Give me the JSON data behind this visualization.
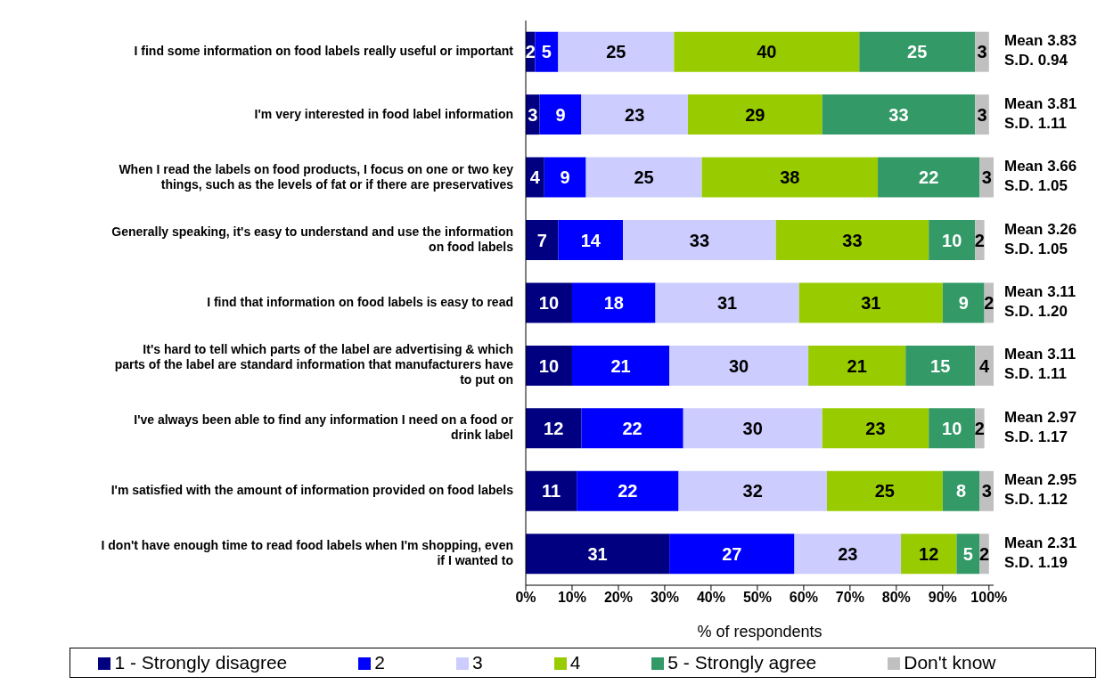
{
  "chart_data": {
    "type": "bar",
    "orientation": "horizontal",
    "stacked": true,
    "data_labels": true,
    "legend": "bottom",
    "xlabel": "% of respondents",
    "categories": [
      "I find some information on food labels really useful or important",
      "I'm very interested in food label information",
      "When I read the labels on food products, I focus on one or two key things, such as the levels of fat or if there are preservatives",
      "Generally speaking, it's easy to understand and use the information on food labels",
      "I find that information on food labels is easy to read",
      "It's hard to tell which parts of the label are advertising & which parts of the label are standard information that manufacturers have to put on",
      "I've always been able to find any information I need on a food or drink label",
      "I'm satisfied with the amount of information provided on food labels",
      "I don't have enough time to read food labels when I'm shopping, even if I wanted to"
    ],
    "series": [
      {
        "name": "1 - Strongly disagree",
        "color": "#000080",
        "values": [
          2,
          3,
          4,
          7,
          10,
          10,
          12,
          11,
          31
        ]
      },
      {
        "name": "2",
        "color": "#0000ff",
        "values": [
          5,
          9,
          9,
          14,
          18,
          21,
          22,
          22,
          27
        ]
      },
      {
        "name": "3",
        "color": "#ccccff",
        "values": [
          25,
          23,
          25,
          33,
          31,
          30,
          30,
          32,
          23
        ]
      },
      {
        "name": "4",
        "color": "#99cc00",
        "values": [
          40,
          29,
          38,
          33,
          31,
          21,
          23,
          25,
          12
        ]
      },
      {
        "name": "5 - Strongly agree",
        "color": "#339966",
        "values": [
          25,
          33,
          22,
          10,
          9,
          15,
          10,
          8,
          5
        ]
      },
      {
        "name": "Don't know",
        "color": "#c0c0c0",
        "values": [
          3,
          3,
          3,
          2,
          2,
          4,
          2,
          3,
          2
        ]
      }
    ],
    "xlim": [
      0,
      101
    ],
    "xticks": [
      {
        "value": 0,
        "label": "0%"
      },
      {
        "value": 10,
        "label": "10%"
      },
      {
        "value": 20,
        "label": "20%"
      },
      {
        "value": 30,
        "label": "30%"
      },
      {
        "value": 40,
        "label": "40%"
      },
      {
        "value": 50,
        "label": "50%"
      },
      {
        "value": 60,
        "label": "60%"
      },
      {
        "value": 70,
        "label": "70%"
      },
      {
        "value": 80,
        "label": "80%"
      },
      {
        "value": 90,
        "label": "90%"
      },
      {
        "value": 100,
        "label": "100%"
      }
    ],
    "annotations": [
      "Mean 3.83",
      "S.D. 0.94",
      "Mean 3.81",
      "S.D. 1.11",
      "Mean 3.66",
      "S.D. 1.05",
      "Mean 3.26",
      "S.D. 1.05",
      "Mean 3.11",
      "S.D. 1.20",
      "Mean 3.11",
      "S.D. 1.11",
      "Mean 2.97",
      "S.D. 1.17",
      "Mean 2.95",
      "S.D. 1.12",
      "Mean 2.31",
      "S.D. 1.19"
    ]
  }
}
